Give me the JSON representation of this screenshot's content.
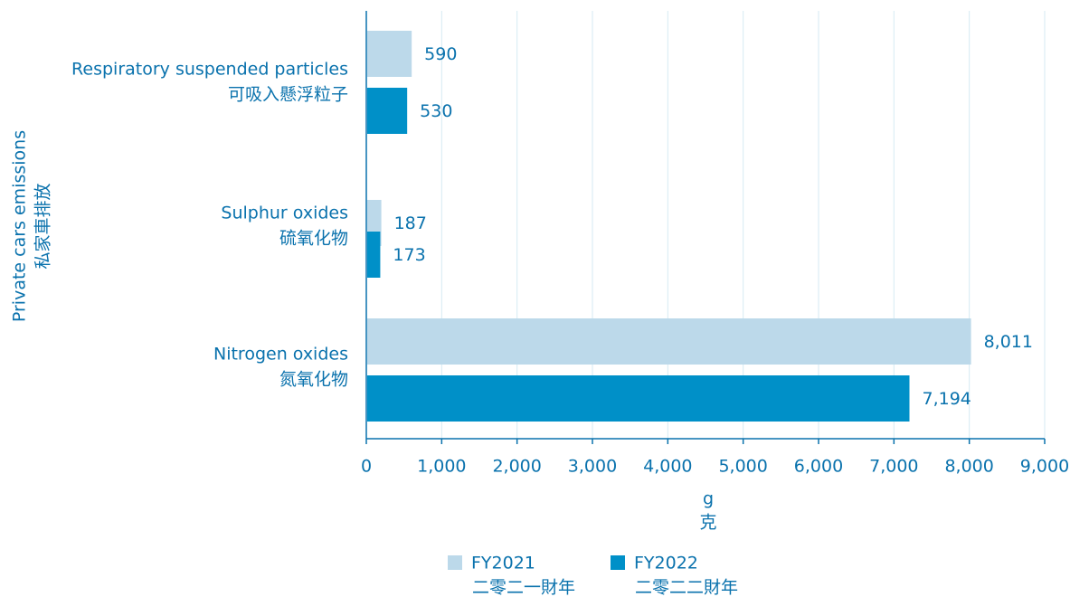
{
  "chart_data": {
    "type": "barh",
    "ylabel": "Private cars emissions",
    "ylabel_zh": "私家車排放",
    "xlabel": "g",
    "xlabel_zh": "克",
    "categories": [
      "Respiratory  suspended particles",
      "Sulphur oxides",
      "Nitrogen oxides"
    ],
    "categories_zh": [
      "可吸入懸浮粒子",
      "硫氧化物",
      "氮氧化物"
    ],
    "series": [
      {
        "name": "FY2021",
        "name_zh": "二零二一財年",
        "color": "#bcd9ea",
        "values": [
          590,
          187,
          8011
        ],
        "value_labels": [
          "590",
          "187",
          "8,011"
        ]
      },
      {
        "name": "FY2022",
        "name_zh": "二零二二財年",
        "color": "#0090c8",
        "values": [
          530,
          173,
          7194
        ],
        "value_labels": [
          "530",
          "173",
          "7,194"
        ]
      }
    ],
    "xlim": [
      0,
      9000
    ],
    "xticks": [
      0,
      {
        "value": 1000,
        "label": "1,000"
      },
      {
        "value": 2000,
        "label": "2,000"
      },
      {
        "value": 3000,
        "label": "3,000"
      },
      {
        "value": 4000,
        "label": "4,000"
      },
      {
        "value": 5000,
        "label": "5,000"
      },
      {
        "value": 6000,
        "label": "6,000"
      },
      {
        "value": 7000,
        "label": "7,000"
      },
      {
        "value": 8000,
        "label": "8,000"
      },
      {
        "value": 9000,
        "label": "9,000"
      }
    ],
    "grid": true
  }
}
